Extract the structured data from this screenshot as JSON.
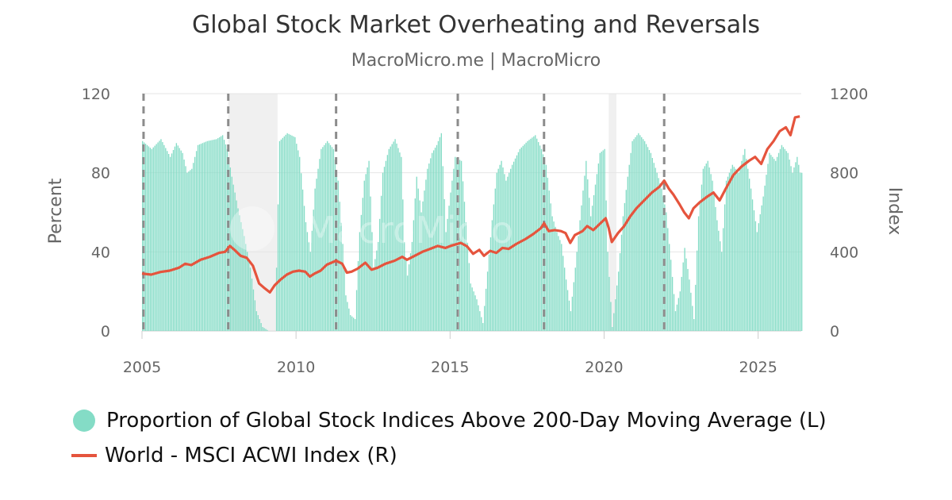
{
  "chart_data": {
    "type": "bar+line",
    "title": "Global Stock Market Overheating and Reversals",
    "subtitle": "MacroMicro.me | MacroMicro",
    "ylabel_left": "Percent",
    "ylabel_right": "Index",
    "y_left_ticks": [
      "0",
      "40",
      "80",
      "120"
    ],
    "y_right_ticks": [
      "0",
      "400",
      "800",
      "1200"
    ],
    "x_ticks": [
      "2005",
      "2010",
      "2015",
      "2020",
      "2025"
    ],
    "ylim_left": [
      0,
      120
    ],
    "ylim_right": [
      0,
      1200
    ],
    "xlim": [
      2005.0,
      2026.4
    ],
    "grid": true,
    "legend_position": "bottom-left",
    "colors": {
      "bars": "#84dcc6",
      "line": "#e5543d",
      "shade": "#e6e6e6",
      "reversal_lines": "#8c8c8c"
    },
    "shaded_periods": [
      [
        2007.8,
        2009.4
      ],
      [
        2020.15,
        2020.4
      ]
    ],
    "reversal_markers": [
      2005.05,
      2007.8,
      2011.3,
      2015.25,
      2018.05,
      2021.95
    ],
    "series": [
      {
        "name": "Proportion of Global Stock Indices Above 200-Day Moving Average (L)",
        "kind": "bar",
        "axis": "left",
        "points": [
          [
            2005.0,
            96
          ],
          [
            2005.3,
            92
          ],
          [
            2005.6,
            97
          ],
          [
            2005.9,
            88
          ],
          [
            2006.1,
            95
          ],
          [
            2006.3,
            90
          ],
          [
            2006.45,
            80
          ],
          [
            2006.6,
            82
          ],
          [
            2006.8,
            94
          ],
          [
            2007.1,
            96
          ],
          [
            2007.4,
            97
          ],
          [
            2007.6,
            99
          ],
          [
            2007.75,
            92
          ],
          [
            2007.9,
            78
          ],
          [
            2008.1,
            62
          ],
          [
            2008.3,
            48
          ],
          [
            2008.5,
            32
          ],
          [
            2008.7,
            10
          ],
          [
            2008.9,
            2
          ],
          [
            2009.1,
            0
          ],
          [
            2009.3,
            0
          ],
          [
            2009.45,
            96
          ],
          [
            2009.7,
            100
          ],
          [
            2009.95,
            98
          ],
          [
            2010.1,
            88
          ],
          [
            2010.3,
            55
          ],
          [
            2010.45,
            40
          ],
          [
            2010.6,
            72
          ],
          [
            2010.8,
            92
          ],
          [
            2011.0,
            96
          ],
          [
            2011.2,
            92
          ],
          [
            2011.35,
            76
          ],
          [
            2011.5,
            44
          ],
          [
            2011.6,
            18
          ],
          [
            2011.75,
            8
          ],
          [
            2011.9,
            6
          ],
          [
            2012.05,
            50
          ],
          [
            2012.2,
            76
          ],
          [
            2012.35,
            86
          ],
          [
            2012.5,
            32
          ],
          [
            2012.65,
            45
          ],
          [
            2012.8,
            80
          ],
          [
            2013.0,
            92
          ],
          [
            2013.2,
            97
          ],
          [
            2013.4,
            88
          ],
          [
            2013.5,
            45
          ],
          [
            2013.6,
            28
          ],
          [
            2013.75,
            45
          ],
          [
            2013.9,
            78
          ],
          [
            2014.05,
            60
          ],
          [
            2014.25,
            82
          ],
          [
            2014.4,
            90
          ],
          [
            2014.55,
            94
          ],
          [
            2014.7,
            100
          ],
          [
            2014.85,
            50
          ],
          [
            2015.0,
            70
          ],
          [
            2015.15,
            88
          ],
          [
            2015.35,
            86
          ],
          [
            2015.5,
            55
          ],
          [
            2015.65,
            24
          ],
          [
            2015.85,
            16
          ],
          [
            2016.05,
            4
          ],
          [
            2016.2,
            30
          ],
          [
            2016.35,
            56
          ],
          [
            2016.5,
            80
          ],
          [
            2016.65,
            86
          ],
          [
            2016.8,
            76
          ],
          [
            2017.0,
            84
          ],
          [
            2017.25,
            92
          ],
          [
            2017.5,
            96
          ],
          [
            2017.75,
            99
          ],
          [
            2017.95,
            92
          ],
          [
            2018.1,
            84
          ],
          [
            2018.3,
            58
          ],
          [
            2018.45,
            50
          ],
          [
            2018.6,
            44
          ],
          [
            2018.75,
            26
          ],
          [
            2018.9,
            10
          ],
          [
            2019.05,
            32
          ],
          [
            2019.2,
            56
          ],
          [
            2019.4,
            86
          ],
          [
            2019.55,
            58
          ],
          [
            2019.7,
            74
          ],
          [
            2019.85,
            90
          ],
          [
            2020.0,
            92
          ],
          [
            2020.1,
            40
          ],
          [
            2020.25,
            2
          ],
          [
            2020.45,
            30
          ],
          [
            2020.6,
            58
          ],
          [
            2020.75,
            78
          ],
          [
            2020.9,
            96
          ],
          [
            2021.1,
            100
          ],
          [
            2021.3,
            96
          ],
          [
            2021.5,
            90
          ],
          [
            2021.7,
            80
          ],
          [
            2021.85,
            72
          ],
          [
            2022.0,
            60
          ],
          [
            2022.15,
            36
          ],
          [
            2022.3,
            10
          ],
          [
            2022.45,
            20
          ],
          [
            2022.6,
            42
          ],
          [
            2022.75,
            26
          ],
          [
            2022.9,
            6
          ],
          [
            2023.05,
            58
          ],
          [
            2023.2,
            82
          ],
          [
            2023.35,
            86
          ],
          [
            2023.5,
            76
          ],
          [
            2023.65,
            56
          ],
          [
            2023.8,
            40
          ],
          [
            2023.95,
            76
          ],
          [
            2024.15,
            84
          ],
          [
            2024.35,
            80
          ],
          [
            2024.55,
            92
          ],
          [
            2024.75,
            72
          ],
          [
            2024.95,
            50
          ],
          [
            2025.15,
            68
          ],
          [
            2025.35,
            90
          ],
          [
            2025.55,
            86
          ],
          [
            2025.75,
            94
          ],
          [
            2025.95,
            90
          ],
          [
            2026.1,
            80
          ],
          [
            2026.25,
            88
          ],
          [
            2026.35,
            80
          ]
        ]
      },
      {
        "name": "World - MSCI ACWI Index (R)",
        "kind": "line",
        "axis": "right",
        "points": [
          [
            2005.0,
            290
          ],
          [
            2005.3,
            285
          ],
          [
            2005.6,
            298
          ],
          [
            2005.9,
            305
          ],
          [
            2006.2,
            320
          ],
          [
            2006.4,
            340
          ],
          [
            2006.6,
            333
          ],
          [
            2006.9,
            360
          ],
          [
            2007.2,
            375
          ],
          [
            2007.5,
            395
          ],
          [
            2007.7,
            400
          ],
          [
            2007.85,
            430
          ],
          [
            2008.0,
            410
          ],
          [
            2008.2,
            380
          ],
          [
            2008.4,
            370
          ],
          [
            2008.6,
            330
          ],
          [
            2008.8,
            240
          ],
          [
            2008.95,
            220
          ],
          [
            2009.15,
            195
          ],
          [
            2009.3,
            230
          ],
          [
            2009.5,
            260
          ],
          [
            2009.7,
            285
          ],
          [
            2009.9,
            300
          ],
          [
            2010.1,
            305
          ],
          [
            2010.3,
            300
          ],
          [
            2010.45,
            275
          ],
          [
            2010.6,
            290
          ],
          [
            2010.8,
            305
          ],
          [
            2011.0,
            335
          ],
          [
            2011.3,
            355
          ],
          [
            2011.5,
            340
          ],
          [
            2011.65,
            295
          ],
          [
            2011.8,
            300
          ],
          [
            2012.0,
            315
          ],
          [
            2012.25,
            345
          ],
          [
            2012.45,
            310
          ],
          [
            2012.65,
            320
          ],
          [
            2012.9,
            340
          ],
          [
            2013.2,
            355
          ],
          [
            2013.45,
            375
          ],
          [
            2013.6,
            360
          ],
          [
            2013.85,
            380
          ],
          [
            2014.1,
            400
          ],
          [
            2014.35,
            415
          ],
          [
            2014.6,
            430
          ],
          [
            2014.85,
            420
          ],
          [
            2015.05,
            432
          ],
          [
            2015.35,
            445
          ],
          [
            2015.55,
            428
          ],
          [
            2015.75,
            390
          ],
          [
            2015.95,
            410
          ],
          [
            2016.1,
            380
          ],
          [
            2016.3,
            405
          ],
          [
            2016.5,
            395
          ],
          [
            2016.7,
            420
          ],
          [
            2016.9,
            415
          ],
          [
            2017.15,
            440
          ],
          [
            2017.45,
            465
          ],
          [
            2017.7,
            490
          ],
          [
            2017.95,
            520
          ],
          [
            2018.05,
            545
          ],
          [
            2018.2,
            505
          ],
          [
            2018.4,
            510
          ],
          [
            2018.6,
            505
          ],
          [
            2018.75,
            495
          ],
          [
            2018.9,
            445
          ],
          [
            2019.05,
            485
          ],
          [
            2019.3,
            505
          ],
          [
            2019.45,
            530
          ],
          [
            2019.65,
            510
          ],
          [
            2019.85,
            540
          ],
          [
            2020.05,
            570
          ],
          [
            2020.15,
            520
          ],
          [
            2020.25,
            450
          ],
          [
            2020.45,
            495
          ],
          [
            2020.65,
            530
          ],
          [
            2020.85,
            580
          ],
          [
            2021.05,
            620
          ],
          [
            2021.3,
            660
          ],
          [
            2021.55,
            700
          ],
          [
            2021.8,
            730
          ],
          [
            2021.95,
            760
          ],
          [
            2022.1,
            720
          ],
          [
            2022.25,
            690
          ],
          [
            2022.45,
            640
          ],
          [
            2022.6,
            600
          ],
          [
            2022.75,
            570
          ],
          [
            2022.9,
            620
          ],
          [
            2023.1,
            650
          ],
          [
            2023.35,
            680
          ],
          [
            2023.55,
            700
          ],
          [
            2023.75,
            660
          ],
          [
            2023.95,
            720
          ],
          [
            2024.2,
            790
          ],
          [
            2024.45,
            830
          ],
          [
            2024.7,
            860
          ],
          [
            2024.9,
            880
          ],
          [
            2025.1,
            845
          ],
          [
            2025.3,
            920
          ],
          [
            2025.5,
            960
          ],
          [
            2025.7,
            1010
          ],
          [
            2025.9,
            1030
          ],
          [
            2026.05,
            990
          ],
          [
            2026.2,
            1080
          ],
          [
            2026.35,
            1085
          ]
        ]
      }
    ]
  }
}
